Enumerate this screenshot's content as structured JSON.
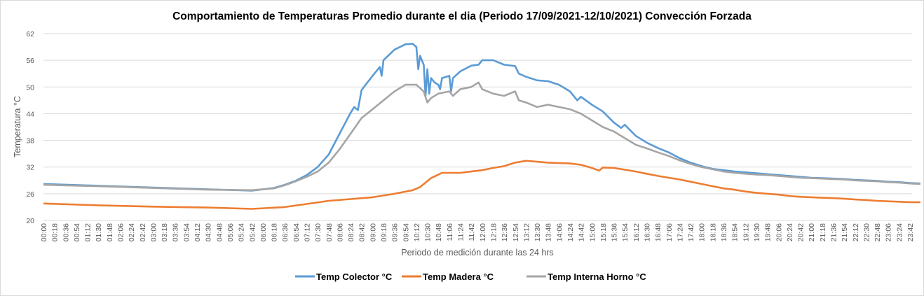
{
  "chart_data": {
    "type": "line",
    "title": "Comportamiento de Temperaturas Promedio durante el dia (Periodo 17/09/2021-12/10/2021) Convección Forzada",
    "xlabel": "Periodo de medición durante las 24 hrs",
    "ylabel": "Temperatura °C",
    "ylim": [
      20,
      62
    ],
    "yticks": [
      "20",
      "26",
      "32",
      "38",
      "44",
      "50",
      "56",
      "62"
    ],
    "xlim": [
      "00:00",
      "23:59"
    ],
    "xticks": [
      "00:00",
      "00:18",
      "00:36",
      "00:54",
      "01:12",
      "01:30",
      "01:48",
      "02:06",
      "02:24",
      "02:42",
      "03:00",
      "03:18",
      "03:36",
      "03:54",
      "04:12",
      "04:30",
      "04:48",
      "05:06",
      "05:24",
      "05:42",
      "06:00",
      "06:18",
      "06:36",
      "06:54",
      "07:12",
      "07:30",
      "07:48",
      "08:06",
      "08:24",
      "08:42",
      "09:00",
      "09:18",
      "09:36",
      "09:54",
      "10:12",
      "10:30",
      "10:48",
      "11:06",
      "11:24",
      "11:42",
      "12:00",
      "12:18",
      "12:36",
      "12:54",
      "13:12",
      "13:30",
      "13:48",
      "14:06",
      "14:24",
      "14:42",
      "15:00",
      "15:18",
      "15:36",
      "15:54",
      "16:12",
      "16:30",
      "16:48",
      "17:06",
      "17:24",
      "17:42",
      "18:00",
      "18:18",
      "18:36",
      "18:54",
      "19:12",
      "19:30",
      "19:48",
      "20:06",
      "20:24",
      "20:42",
      "21:00",
      "21:18",
      "21:36",
      "21:54",
      "22:12",
      "22:30",
      "22:48",
      "23:06",
      "23:24",
      "23:42"
    ],
    "grid": true,
    "legend_position": "bottom",
    "series": [
      {
        "name": "Temp Colector °C",
        "color": "#5b9bd5",
        "points": [
          [
            "00:00",
            28.2
          ],
          [
            "01:30",
            27.8
          ],
          [
            "03:00",
            27.4
          ],
          [
            "04:30",
            27.0
          ],
          [
            "05:42",
            26.7
          ],
          [
            "06:18",
            27.3
          ],
          [
            "06:36",
            28.0
          ],
          [
            "06:54",
            28.9
          ],
          [
            "07:12",
            30.2
          ],
          [
            "07:30",
            32.0
          ],
          [
            "07:48",
            34.8
          ],
          [
            "08:06",
            39.5
          ],
          [
            "08:24",
            44.2
          ],
          [
            "08:30",
            45.5
          ],
          [
            "08:36",
            44.8
          ],
          [
            "08:42",
            49.3
          ],
          [
            "09:00",
            52.5
          ],
          [
            "09:12",
            54.5
          ],
          [
            "09:15",
            52.5
          ],
          [
            "09:18",
            56.0
          ],
          [
            "09:36",
            58.4
          ],
          [
            "09:54",
            59.6
          ],
          [
            "10:06",
            59.7
          ],
          [
            "10:12",
            59.0
          ],
          [
            "10:15",
            54.0
          ],
          [
            "10:18",
            57.0
          ],
          [
            "10:24",
            55.0
          ],
          [
            "10:27",
            48.0
          ],
          [
            "10:30",
            54.0
          ],
          [
            "10:33",
            48.5
          ],
          [
            "10:36",
            52.0
          ],
          [
            "10:42",
            51.0
          ],
          [
            "10:48",
            50.5
          ],
          [
            "10:51",
            49.5
          ],
          [
            "10:54",
            52.0
          ],
          [
            "11:06",
            52.5
          ],
          [
            "11:09",
            49.0
          ],
          [
            "11:12",
            52.0
          ],
          [
            "11:24",
            53.5
          ],
          [
            "11:42",
            54.8
          ],
          [
            "11:54",
            55.0
          ],
          [
            "12:00",
            56.0
          ],
          [
            "12:18",
            56.0
          ],
          [
            "12:36",
            55.0
          ],
          [
            "12:54",
            54.7
          ],
          [
            "13:00",
            53.0
          ],
          [
            "13:12",
            52.3
          ],
          [
            "13:30",
            51.5
          ],
          [
            "13:48",
            51.3
          ],
          [
            "14:06",
            50.5
          ],
          [
            "14:24",
            49.0
          ],
          [
            "14:36",
            47.0
          ],
          [
            "14:42",
            47.8
          ],
          [
            "15:00",
            46.0
          ],
          [
            "15:18",
            44.5
          ],
          [
            "15:36",
            42.0
          ],
          [
            "15:48",
            40.8
          ],
          [
            "15:54",
            41.5
          ],
          [
            "16:12",
            39.0
          ],
          [
            "16:30",
            37.5
          ],
          [
            "16:48",
            36.3
          ],
          [
            "17:06",
            35.3
          ],
          [
            "17:24",
            34.0
          ],
          [
            "17:42",
            33.0
          ],
          [
            "18:00",
            32.2
          ],
          [
            "18:18",
            31.6
          ],
          [
            "18:36",
            31.3
          ],
          [
            "18:54",
            31.0
          ],
          [
            "19:12",
            30.8
          ],
          [
            "19:30",
            30.6
          ],
          [
            "19:48",
            30.4
          ],
          [
            "20:06",
            30.2
          ],
          [
            "20:24",
            30.0
          ],
          [
            "20:42",
            29.8
          ],
          [
            "21:00",
            29.6
          ],
          [
            "21:18",
            29.5
          ],
          [
            "21:36",
            29.4
          ],
          [
            "21:54",
            29.3
          ],
          [
            "22:12",
            29.1
          ],
          [
            "22:30",
            29.0
          ],
          [
            "22:48",
            28.9
          ],
          [
            "23:06",
            28.7
          ],
          [
            "23:24",
            28.6
          ],
          [
            "23:42",
            28.4
          ],
          [
            "23:59",
            28.3
          ]
        ]
      },
      {
        "name": "Temp Madera °C",
        "color": "#ed7d31",
        "points": [
          [
            "00:00",
            23.8
          ],
          [
            "01:30",
            23.4
          ],
          [
            "03:00",
            23.1
          ],
          [
            "04:30",
            22.9
          ],
          [
            "05:42",
            22.6
          ],
          [
            "06:36",
            23.0
          ],
          [
            "07:12",
            23.7
          ],
          [
            "07:48",
            24.4
          ],
          [
            "08:24",
            24.8
          ],
          [
            "09:00",
            25.2
          ],
          [
            "09:36",
            26.0
          ],
          [
            "10:06",
            26.8
          ],
          [
            "10:18",
            27.5
          ],
          [
            "10:36",
            29.5
          ],
          [
            "10:54",
            30.7
          ],
          [
            "11:24",
            30.7
          ],
          [
            "11:42",
            31.0
          ],
          [
            "12:00",
            31.3
          ],
          [
            "12:18",
            31.8
          ],
          [
            "12:36",
            32.2
          ],
          [
            "12:54",
            33.0
          ],
          [
            "13:12",
            33.4
          ],
          [
            "13:30",
            33.2
          ],
          [
            "13:48",
            33.0
          ],
          [
            "14:06",
            32.9
          ],
          [
            "14:24",
            32.8
          ],
          [
            "14:42",
            32.5
          ],
          [
            "15:00",
            31.8
          ],
          [
            "15:12",
            31.2
          ],
          [
            "15:18",
            31.9
          ],
          [
            "15:36",
            31.8
          ],
          [
            "15:54",
            31.4
          ],
          [
            "16:12",
            31.0
          ],
          [
            "16:30",
            30.5
          ],
          [
            "16:48",
            30.0
          ],
          [
            "17:06",
            29.6
          ],
          [
            "17:24",
            29.2
          ],
          [
            "17:42",
            28.7
          ],
          [
            "18:00",
            28.2
          ],
          [
            "18:18",
            27.7
          ],
          [
            "18:36",
            27.2
          ],
          [
            "18:54",
            26.9
          ],
          [
            "19:12",
            26.5
          ],
          [
            "19:30",
            26.2
          ],
          [
            "19:48",
            26.0
          ],
          [
            "20:06",
            25.8
          ],
          [
            "20:24",
            25.5
          ],
          [
            "20:42",
            25.3
          ],
          [
            "21:00",
            25.2
          ],
          [
            "21:18",
            25.1
          ],
          [
            "21:36",
            25.0
          ],
          [
            "21:54",
            24.9
          ],
          [
            "22:12",
            24.7
          ],
          [
            "22:30",
            24.6
          ],
          [
            "22:48",
            24.4
          ],
          [
            "23:06",
            24.3
          ],
          [
            "23:24",
            24.2
          ],
          [
            "23:42",
            24.1
          ],
          [
            "23:59",
            24.1
          ]
        ]
      },
      {
        "name": "Temp Interna Horno °C",
        "color": "#a5a5a5",
        "points": [
          [
            "00:00",
            28.0
          ],
          [
            "01:30",
            27.7
          ],
          [
            "03:00",
            27.3
          ],
          [
            "04:30",
            26.9
          ],
          [
            "05:42",
            26.8
          ],
          [
            "06:18",
            27.2
          ],
          [
            "06:36",
            27.9
          ],
          [
            "06:54",
            28.8
          ],
          [
            "07:12",
            29.8
          ],
          [
            "07:30",
            31.0
          ],
          [
            "07:48",
            33.0
          ],
          [
            "08:06",
            36.0
          ],
          [
            "08:24",
            39.5
          ],
          [
            "08:42",
            43.0
          ],
          [
            "09:00",
            45.0
          ],
          [
            "09:18",
            47.0
          ],
          [
            "09:36",
            49.0
          ],
          [
            "09:54",
            50.5
          ],
          [
            "10:12",
            50.5
          ],
          [
            "10:24",
            49.0
          ],
          [
            "10:30",
            46.5
          ],
          [
            "10:36",
            47.5
          ],
          [
            "10:48",
            48.5
          ],
          [
            "11:06",
            49.0
          ],
          [
            "11:12",
            48.0
          ],
          [
            "11:24",
            49.5
          ],
          [
            "11:42",
            50.0
          ],
          [
            "11:54",
            51.0
          ],
          [
            "12:00",
            49.5
          ],
          [
            "12:18",
            48.5
          ],
          [
            "12:36",
            48.0
          ],
          [
            "12:54",
            49.0
          ],
          [
            "13:00",
            47.0
          ],
          [
            "13:12",
            46.5
          ],
          [
            "13:30",
            45.5
          ],
          [
            "13:48",
            46.0
          ],
          [
            "14:06",
            45.5
          ],
          [
            "14:24",
            45.0
          ],
          [
            "14:42",
            44.0
          ],
          [
            "15:00",
            42.5
          ],
          [
            "15:18",
            41.0
          ],
          [
            "15:36",
            40.0
          ],
          [
            "15:54",
            38.5
          ],
          [
            "16:12",
            37.0
          ],
          [
            "16:30",
            36.2
          ],
          [
            "16:48",
            35.3
          ],
          [
            "17:06",
            34.5
          ],
          [
            "17:24",
            33.5
          ],
          [
            "17:42",
            32.7
          ],
          [
            "18:00",
            32.0
          ],
          [
            "18:18",
            31.5
          ],
          [
            "18:36",
            31.0
          ],
          [
            "18:54",
            30.7
          ],
          [
            "19:12",
            30.5
          ],
          [
            "19:30",
            30.3
          ],
          [
            "19:48",
            30.2
          ],
          [
            "20:06",
            30.0
          ],
          [
            "20:24",
            29.8
          ],
          [
            "20:42",
            29.6
          ],
          [
            "21:00",
            29.5
          ],
          [
            "21:18",
            29.4
          ],
          [
            "21:36",
            29.3
          ],
          [
            "21:54",
            29.2
          ],
          [
            "22:12",
            29.0
          ],
          [
            "22:30",
            28.9
          ],
          [
            "22:48",
            28.8
          ],
          [
            "23:06",
            28.6
          ],
          [
            "23:24",
            28.5
          ],
          [
            "23:42",
            28.3
          ],
          [
            "23:59",
            28.2
          ]
        ]
      }
    ]
  }
}
